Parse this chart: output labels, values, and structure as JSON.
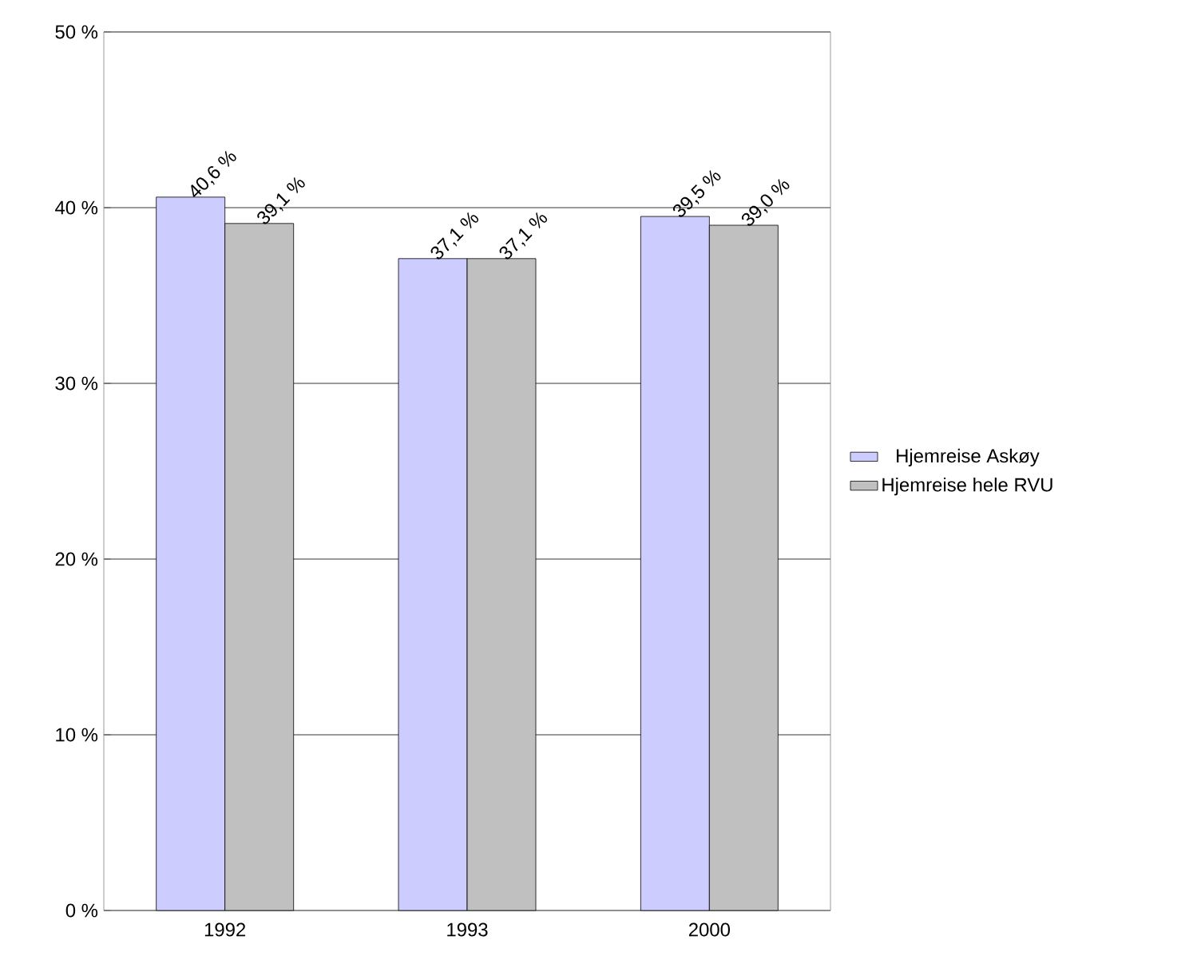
{
  "chart_data": {
    "type": "bar",
    "categories": [
      "1992",
      "1993",
      "2000"
    ],
    "series": [
      {
        "name": "Hjemreise Askøy",
        "color": "#ccccff",
        "values": [
          40.6,
          37.1,
          39.5
        ],
        "value_labels": [
          "40,6 %",
          "37,1 %",
          "39,5 %"
        ]
      },
      {
        "name": "Hjemreise hele RVU",
        "color": "#c0c0c0",
        "values": [
          39.1,
          37.1,
          39.0
        ],
        "value_labels": [
          "39,1 %",
          "37,1 %",
          "39,0 %"
        ]
      }
    ],
    "ylim": [
      0,
      50
    ],
    "yticks": [
      {
        "value": 0,
        "label": "0 %"
      },
      {
        "value": 10,
        "label": "10 %"
      },
      {
        "value": 20,
        "label": "20 %"
      },
      {
        "value": 30,
        "label": "30 %"
      },
      {
        "value": 40,
        "label": "40 %"
      },
      {
        "value": 50,
        "label": "50 %"
      }
    ],
    "grid": "y",
    "legend": "right"
  }
}
